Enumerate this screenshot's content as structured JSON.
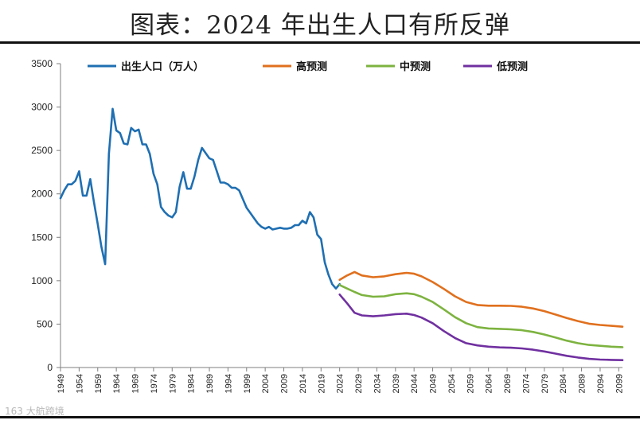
{
  "page": {
    "title": "图表：2024 年出生人口有所反弹",
    "watermark": "163 大航跨境"
  },
  "chart_data": {
    "type": "line",
    "title": "图表：2024 年出生人口有所反弹",
    "xlabel": "",
    "ylabel": "",
    "xlim": [
      1949,
      2100
    ],
    "ylim": [
      0,
      3500
    ],
    "y_ticks": [
      0,
      500,
      1000,
      1500,
      2000,
      2500,
      3000,
      3500
    ],
    "x_ticks": [
      1949,
      1954,
      1959,
      1964,
      1969,
      1974,
      1979,
      1984,
      1989,
      1994,
      1999,
      2004,
      2009,
      2014,
      2019,
      2024,
      2029,
      2034,
      2039,
      2044,
      2049,
      2054,
      2059,
      2064,
      2069,
      2074,
      2079,
      2084,
      2089,
      2094,
      2099
    ],
    "grid": false,
    "legend_position": "top",
    "series": [
      {
        "name": "出生人口（万人）",
        "color": "#1f6fb2",
        "x": [
          1949,
          1950,
          1951,
          1952,
          1953,
          1954,
          1955,
          1956,
          1957,
          1958,
          1959,
          1960,
          1961,
          1962,
          1963,
          1964,
          1965,
          1966,
          1967,
          1968,
          1969,
          1970,
          1971,
          1972,
          1973,
          1974,
          1975,
          1976,
          1977,
          1978,
          1979,
          1980,
          1981,
          1982,
          1983,
          1984,
          1985,
          1986,
          1987,
          1988,
          1989,
          1990,
          1991,
          1992,
          1993,
          1994,
          1995,
          1996,
          1997,
          1998,
          1999,
          2000,
          2001,
          2002,
          2003,
          2004,
          2005,
          2006,
          2007,
          2008,
          2009,
          2010,
          2011,
          2012,
          2013,
          2014,
          2015,
          2016,
          2017,
          2018,
          2019,
          2020,
          2021,
          2022,
          2023,
          2024
        ],
        "values": [
          1950,
          2040,
          2110,
          2110,
          2150,
          2260,
          1980,
          1980,
          2170,
          1900,
          1650,
          1390,
          1190,
          2460,
          2980,
          2730,
          2700,
          2580,
          2570,
          2760,
          2720,
          2740,
          2570,
          2570,
          2460,
          2230,
          2110,
          1850,
          1790,
          1750,
          1730,
          1790,
          2080,
          2250,
          2060,
          2060,
          2200,
          2390,
          2530,
          2470,
          2410,
          2390,
          2260,
          2130,
          2130,
          2110,
          2070,
          2070,
          2040,
          1940,
          1840,
          1780,
          1720,
          1660,
          1620,
          1600,
          1620,
          1590,
          1600,
          1610,
          1600,
          1600,
          1610,
          1640,
          1640,
          1690,
          1660,
          1790,
          1730,
          1530,
          1480,
          1210,
          1070,
          960,
          910,
          960
        ]
      },
      {
        "name": "高预测",
        "color": "#e0701e",
        "x": [
          2024,
          2026,
          2028,
          2030,
          2033,
          2036,
          2039,
          2042,
          2044,
          2046,
          2049,
          2052,
          2055,
          2058,
          2061,
          2064,
          2067,
          2070,
          2073,
          2076,
          2079,
          2082,
          2085,
          2088,
          2091,
          2094,
          2097,
          2100
        ],
        "values": [
          1010,
          1060,
          1100,
          1060,
          1040,
          1050,
          1075,
          1090,
          1080,
          1050,
          985,
          905,
          820,
          755,
          720,
          712,
          712,
          710,
          700,
          680,
          650,
          610,
          570,
          535,
          505,
          490,
          480,
          470
        ]
      },
      {
        "name": "中预测",
        "color": "#7db340",
        "x": [
          2024,
          2026,
          2028,
          2030,
          2033,
          2036,
          2039,
          2042,
          2044,
          2046,
          2049,
          2052,
          2055,
          2058,
          2061,
          2064,
          2067,
          2070,
          2073,
          2076,
          2079,
          2082,
          2085,
          2088,
          2091,
          2094,
          2097,
          2100
        ],
        "values": [
          950,
          910,
          870,
          835,
          815,
          820,
          845,
          855,
          845,
          815,
          755,
          670,
          580,
          510,
          465,
          450,
          445,
          440,
          430,
          410,
          380,
          345,
          310,
          280,
          260,
          250,
          240,
          235
        ]
      },
      {
        "name": "低预测",
        "color": "#7030a0",
        "x": [
          2024,
          2026,
          2028,
          2030,
          2033,
          2036,
          2039,
          2042,
          2044,
          2046,
          2049,
          2052,
          2055,
          2058,
          2061,
          2064,
          2067,
          2070,
          2073,
          2076,
          2079,
          2082,
          2085,
          2088,
          2091,
          2094,
          2097,
          2100
        ],
        "values": [
          840,
          740,
          630,
          600,
          590,
          600,
          615,
          620,
          605,
          575,
          510,
          420,
          340,
          280,
          255,
          240,
          232,
          228,
          220,
          205,
          185,
          160,
          135,
          115,
          100,
          92,
          88,
          85
        ]
      }
    ]
  }
}
